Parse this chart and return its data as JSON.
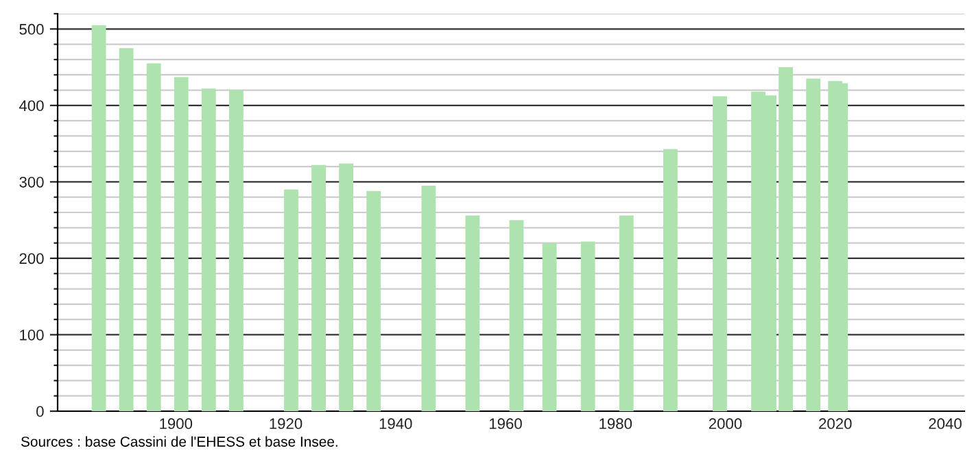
{
  "chart_data": {
    "type": "bar",
    "color": "#aee3b0",
    "x": [
      1886,
      1891,
      1896,
      1901,
      1906,
      1911,
      1921,
      1926,
      1931,
      1936,
      1946,
      1954,
      1962,
      1968,
      1975,
      1982,
      1990,
      1999,
      2006,
      2008,
      2011,
      2016,
      2020,
      2021
    ],
    "values": [
      505,
      475,
      455,
      437,
      422,
      420,
      290,
      322,
      324,
      288,
      295,
      256,
      250,
      220,
      222,
      256,
      343,
      412,
      418,
      413,
      450,
      435,
      432,
      429
    ],
    "xlim": [
      1878.5,
      2043.5
    ],
    "xticks": [
      1900,
      1920,
      1940,
      1960,
      1980,
      2000,
      2020,
      2040
    ],
    "ylim": [
      0,
      520
    ],
    "yticks": [
      0,
      {
        "value": 20,
        "label": null
      },
      {
        "value": 40,
        "label": null
      },
      {
        "value": 60,
        "label": null
      },
      {
        "value": 80,
        "label": null
      },
      100,
      {
        "value": 120,
        "label": null
      },
      {
        "value": 140,
        "label": null
      },
      {
        "value": 160,
        "label": null
      },
      {
        "value": 180,
        "label": null
      },
      200,
      {
        "value": 220,
        "label": null
      },
      {
        "value": 240,
        "label": null
      },
      {
        "value": 260,
        "label": null
      },
      {
        "value": 280,
        "label": null
      },
      300,
      {
        "value": 320,
        "label": null
      },
      {
        "value": 340,
        "label": null
      },
      {
        "value": 360,
        "label": null
      },
      {
        "value": 380,
        "label": null
      },
      400,
      {
        "value": 420,
        "label": null
      },
      {
        "value": 440,
        "label": null
      },
      {
        "value": 460,
        "label": null
      },
      {
        "value": 480,
        "label": null
      },
      500,
      {
        "value": 520,
        "label": null
      }
    ],
    "grid": "y",
    "annotations": [
      "Sources : base Cassini de l'EHESS et base Insee."
    ]
  }
}
